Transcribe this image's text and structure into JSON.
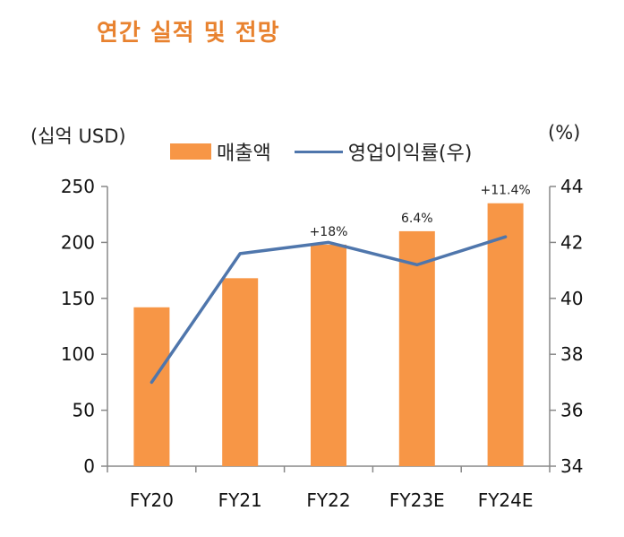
{
  "chart_data": {
    "type": "bar",
    "title": "연간 실적 및 전망",
    "left_unit": "(십억 USD)",
    "right_unit": "(%)",
    "categories": [
      "FY20",
      "FY21",
      "FY22",
      "FY23E",
      "FY24E"
    ],
    "series": [
      {
        "name": "매출액",
        "type": "bar",
        "axis": "left",
        "color": "#F79646",
        "values": [
          142,
          168,
          198,
          210,
          235
        ]
      },
      {
        "name": "영업이익률(우)",
        "type": "line",
        "axis": "right",
        "color": "#4F76AC",
        "values": [
          37.0,
          41.6,
          42.0,
          41.2,
          42.2
        ]
      }
    ],
    "annotations": [
      "",
      "",
      "+18%",
      "6.4%",
      "+11.4%"
    ],
    "ylim_left": [
      0,
      250
    ],
    "yticks_left": [
      "0",
      "50",
      "100",
      "150",
      "200",
      "250"
    ],
    "ylim_right": [
      34,
      44
    ],
    "yticks_right": [
      "34",
      "36",
      "38",
      "40",
      "42",
      "44"
    ],
    "legend_position": "top",
    "grid": false
  }
}
